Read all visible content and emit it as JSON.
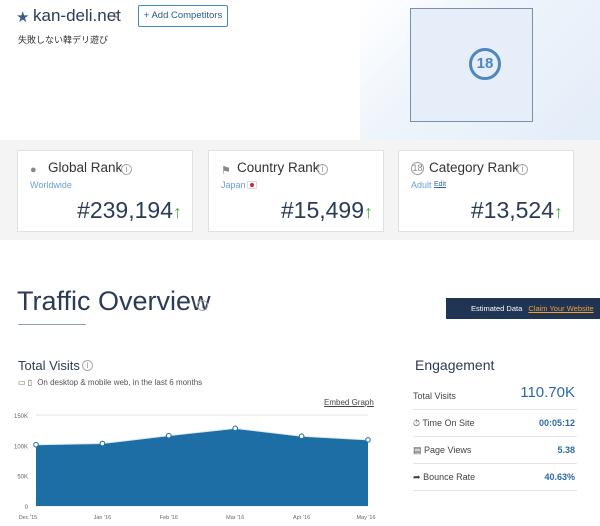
{
  "header": {
    "site": "kan-deli.net",
    "subtitle": "失敗しない韓デリ遊び",
    "add_competitors": "+ Add Competitors",
    "thumbnail_badge": "18"
  },
  "ranks": [
    {
      "title": "Global Rank",
      "location": "Worldwide",
      "value": "#239,194",
      "icon": "globe-icon"
    },
    {
      "title": "Country Rank",
      "location": "Japan",
      "value": "#15,499",
      "icon": "flag-icon"
    },
    {
      "title": "Category Rank",
      "location": "Adult",
      "edit": "Edit",
      "value": "#13,524",
      "icon": "category-icon"
    }
  ],
  "traffic": {
    "title": "Traffic Overview",
    "estimated": "Estimated Data",
    "claim": "Claim Your Website",
    "total_visits_title": "Total Visits",
    "device_note": "On desktop & mobile web, in the last 6 months",
    "embed": "Embed Graph"
  },
  "engagement": {
    "title": "Engagement",
    "rows": [
      {
        "label": "Total Visits",
        "value": "110.70K"
      },
      {
        "label": "Time On Site",
        "value": "00:05:12"
      },
      {
        "label": "Page Views",
        "value": "5.38"
      },
      {
        "label": "Bounce Rate",
        "value": "40.63%"
      }
    ]
  },
  "chart_data": {
    "type": "area",
    "categories": [
      "Dec '15",
      "Jan '16",
      "Feb '16",
      "Mar '16",
      "Apr '16",
      "May '16"
    ],
    "values": [
      101,
      103,
      116,
      128,
      115,
      109
    ],
    "y_ticks": [
      "150K",
      "100K",
      "50K",
      "0"
    ],
    "ylim": [
      0,
      150
    ],
    "color": "#1c6ea4"
  }
}
